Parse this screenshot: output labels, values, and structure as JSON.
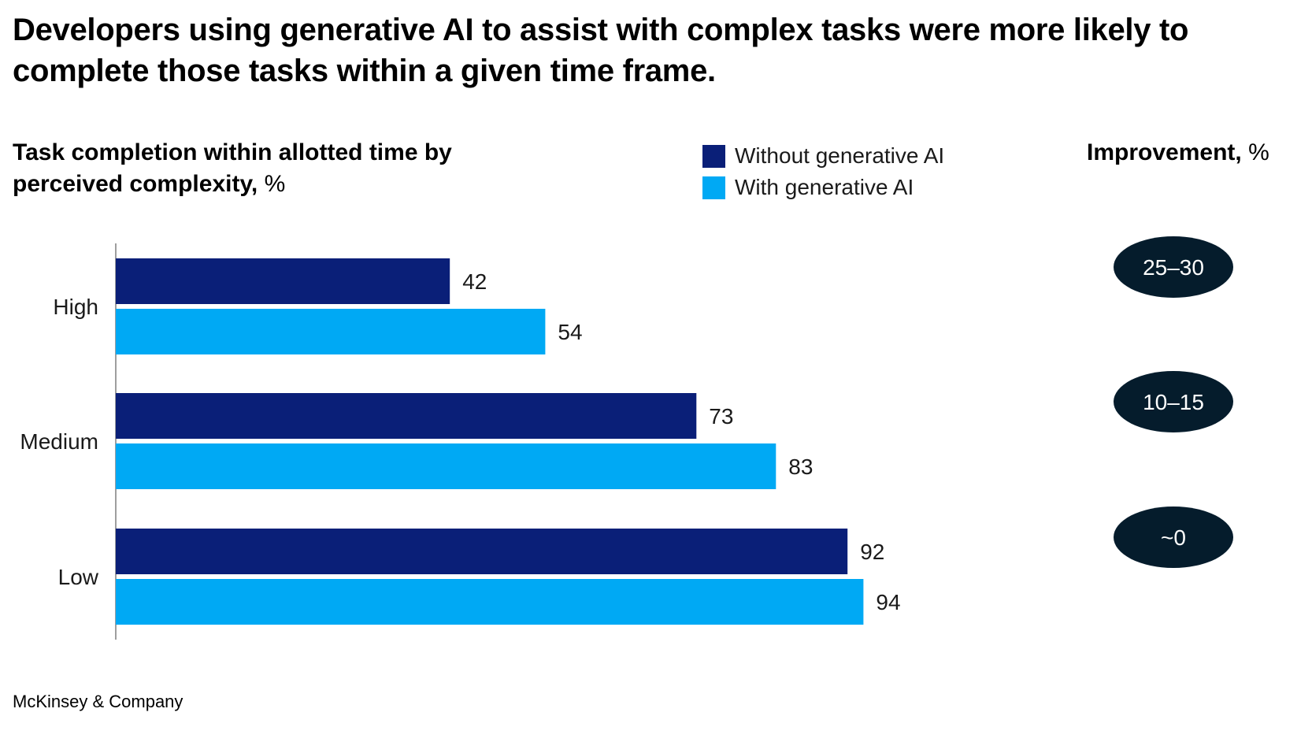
{
  "headline": "Developers using generative AI to assist with complex tasks were more likely to complete those tasks within a given time frame.",
  "chart_subtitle": {
    "bold_part": "Task completion within allotted time by perceived complexity,",
    "unit": "%"
  },
  "improvement_header": {
    "bold_part": "Improvement,",
    "unit": "%"
  },
  "footer": "McKinsey & Company",
  "colors": {
    "without_ai": "#0a1f78",
    "with_ai": "#00a9f4",
    "improvement_pill": "#051c2c",
    "axis": "#7f7f7f"
  },
  "chart_data": {
    "type": "bar",
    "orientation": "horizontal",
    "title": "Task completion within allotted time by perceived complexity, %",
    "categories": [
      "High",
      "Medium",
      "Low"
    ],
    "series": [
      {
        "name": "Without generative AI",
        "values": [
          42,
          73,
          92
        ]
      },
      {
        "name": "With generative AI",
        "values": [
          54,
          83,
          94
        ]
      }
    ],
    "improvement": {
      "title": "Improvement, %",
      "values": [
        "25–30",
        "10–15",
        "~0"
      ]
    },
    "xlim": [
      0,
      100
    ],
    "grid": false,
    "legend_position": "top-center"
  }
}
